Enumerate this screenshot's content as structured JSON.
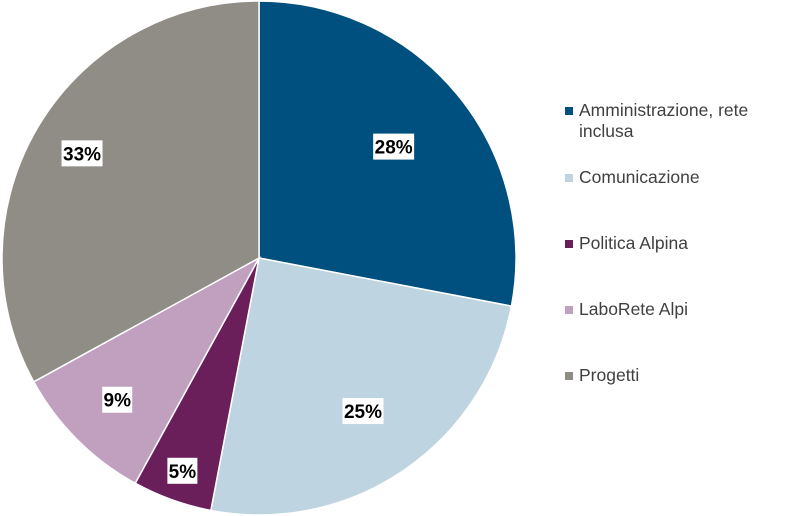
{
  "chart_data": {
    "type": "pie",
    "title": "",
    "slices": [
      {
        "label": "Amministrazione, rete inclusa",
        "value": 28,
        "display": "28%",
        "color": "#00507f"
      },
      {
        "label": "Comunicazione",
        "value": 25,
        "display": "25%",
        "color": "#bed4e1"
      },
      {
        "label": "Politica Alpina",
        "value": 5,
        "display": "5%",
        "color": "#6b1f5a"
      },
      {
        "label": "LaboRete Alpi",
        "value": 9,
        "display": "9%",
        "color": "#c09fbf"
      },
      {
        "label": "Progetti",
        "value": 33,
        "display": "33%",
        "color": "#908c86"
      }
    ],
    "start": "12 o'clock",
    "direction": "clockwise",
    "legend_position": "right"
  }
}
